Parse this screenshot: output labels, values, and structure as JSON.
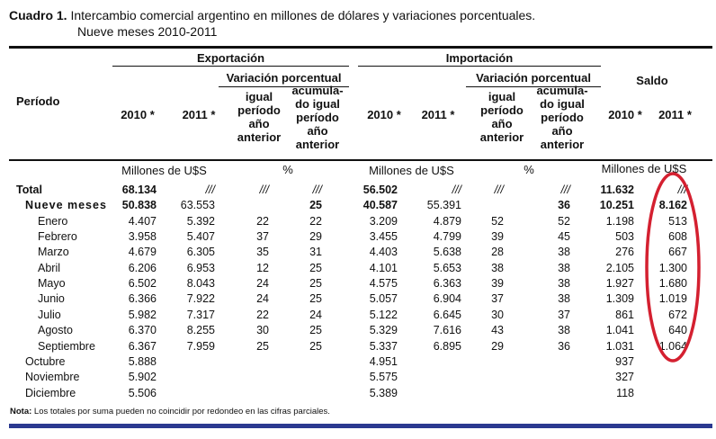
{
  "title": {
    "label": "Cuadro 1.",
    "text": "Intercambio comercial argentino en millones de dólares y variaciones porcentuales.",
    "subtitle": "Nueve meses 2010-2011"
  },
  "header": {
    "period": "Período",
    "exportacion": "Exportación",
    "importacion": "Importación",
    "saldo": "Saldo",
    "variacion": "Variación  porcentual",
    "y2010": "2010 *",
    "y2011": "2011 *",
    "igual": "igual período año anterior",
    "acumulado": "acumula-do igual período año anterior",
    "units_millones": "Millones de U$S",
    "units_pct": "%"
  },
  "rows": [
    {
      "label": "Total",
      "level": 0,
      "bold": true,
      "values": [
        "68.134",
        "///",
        "///",
        "///",
        "56.502",
        "///",
        "///",
        "///",
        "11.632",
        "///"
      ]
    },
    {
      "label": "Nueve meses",
      "level": 1,
      "bold": true,
      "values": [
        "50.838",
        "63.553",
        "",
        "25",
        "40.587",
        "55.391",
        "",
        "36",
        "10.251",
        "8.162"
      ]
    },
    {
      "label": "Enero",
      "level": 2,
      "values": [
        "4.407",
        "5.392",
        "22",
        "22",
        "3.209",
        "4.879",
        "52",
        "52",
        "1.198",
        "513"
      ]
    },
    {
      "label": "Febrero",
      "level": 2,
      "values": [
        "3.958",
        "5.407",
        "37",
        "29",
        "3.455",
        "4.799",
        "39",
        "45",
        "503",
        "608"
      ]
    },
    {
      "label": "Marzo",
      "level": 2,
      "values": [
        "4.679",
        "6.305",
        "35",
        "31",
        "4.403",
        "5.638",
        "28",
        "38",
        "276",
        "667"
      ]
    },
    {
      "label": "Abril",
      "level": 2,
      "values": [
        "6.206",
        "6.953",
        "12",
        "25",
        "4.101",
        "5.653",
        "38",
        "38",
        "2.105",
        "1.300"
      ]
    },
    {
      "label": "Mayo",
      "level": 2,
      "values": [
        "6.502",
        "8.043",
        "24",
        "25",
        "4.575",
        "6.363",
        "39",
        "38",
        "1.927",
        "1.680"
      ]
    },
    {
      "label": "Junio",
      "level": 2,
      "values": [
        "6.366",
        "7.922",
        "24",
        "25",
        "5.057",
        "6.904",
        "37",
        "38",
        "1.309",
        "1.019"
      ]
    },
    {
      "label": "Julio",
      "level": 2,
      "values": [
        "5.982",
        "7.317",
        "22",
        "24",
        "5.122",
        "6.645",
        "30",
        "37",
        "861",
        "672"
      ]
    },
    {
      "label": "Agosto",
      "level": 2,
      "values": [
        "6.370",
        "8.255",
        "30",
        "25",
        "5.329",
        "7.616",
        "43",
        "38",
        "1.041",
        "640"
      ]
    },
    {
      "label": "Septiembre",
      "level": 2,
      "values": [
        "6.367",
        "7.959",
        "25",
        "25",
        "5.337",
        "6.895",
        "29",
        "36",
        "1.031",
        "1.064"
      ]
    },
    {
      "label": "Octubre",
      "level": 1,
      "values": [
        "5.888",
        "",
        "",
        "",
        "4.951",
        "",
        "",
        "",
        "937",
        ""
      ]
    },
    {
      "label": "Noviembre",
      "level": 1,
      "values": [
        "5.902",
        "",
        "",
        "",
        "5.575",
        "",
        "",
        "",
        "327",
        ""
      ]
    },
    {
      "label": "Diciembre",
      "level": 1,
      "values": [
        "5.506",
        "",
        "",
        "",
        "5.389",
        "",
        "",
        "",
        "118",
        ""
      ]
    }
  ],
  "note": {
    "label": "Nota:",
    "text": "Los totales por suma pueden no coincidir por redondeo en las cifras parciales."
  },
  "colors": {
    "highlight": "#d42030",
    "bar": "#2b3990"
  }
}
